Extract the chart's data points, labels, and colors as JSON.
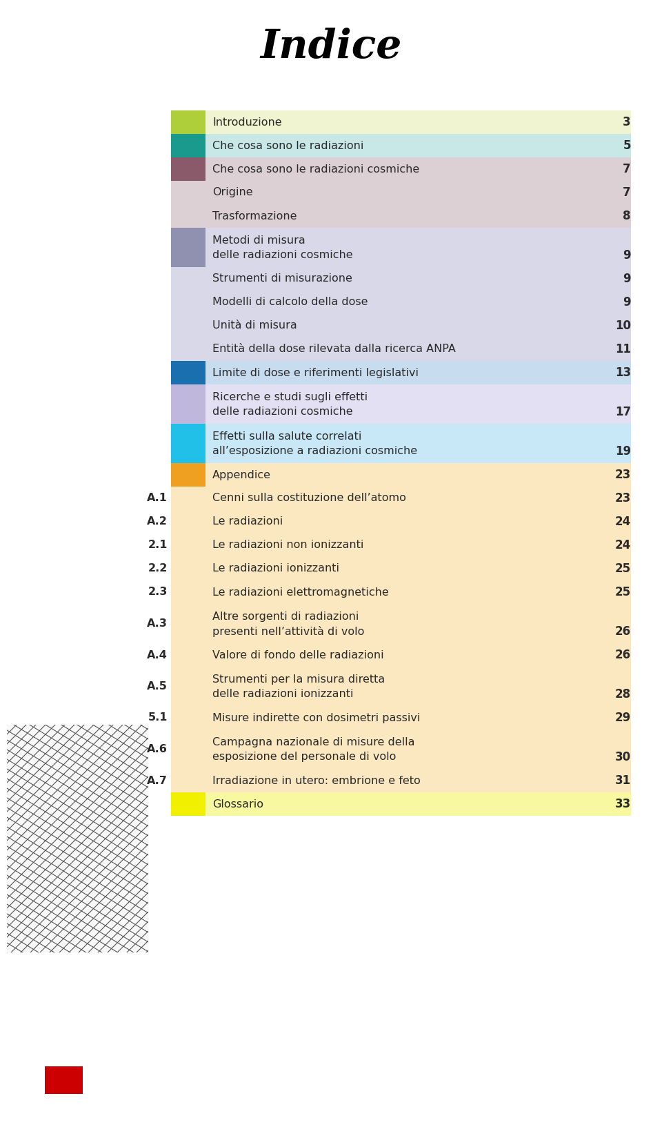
{
  "title": "Indice",
  "bg_color": "#FFFFFF",
  "title_color": "#000000",
  "title_fontsize": 42,
  "entries": [
    {
      "label": "Introduzione",
      "label2": null,
      "page": "3",
      "color_box": "#AECF3A",
      "bg": "#F0F4D0",
      "sub_label": null,
      "two_line": false
    },
    {
      "label": "Che cosa sono le radiazioni",
      "label2": null,
      "page": "5",
      "color_box": "#1A9A8C",
      "bg": "#C8E8E8",
      "sub_label": null,
      "two_line": false
    },
    {
      "label": "Che cosa sono le radiazioni cosmiche",
      "label2": null,
      "page": "7",
      "color_box": "#8B5A6A",
      "bg": "#DDD0D4",
      "sub_label": null,
      "two_line": false
    },
    {
      "label": "Origine",
      "label2": null,
      "page": "7",
      "color_box": null,
      "bg": "#DDD0D4",
      "sub_label": null,
      "two_line": false
    },
    {
      "label": "Trasformazione",
      "label2": null,
      "page": "8",
      "color_box": null,
      "bg": "#DDD0D4",
      "sub_label": null,
      "two_line": false
    },
    {
      "label": "Metodi di misura",
      "label2": "delle radiazioni cosmiche",
      "page": "9",
      "color_box": "#9090B0",
      "bg": "#D8D8E8",
      "sub_label": null,
      "two_line": true
    },
    {
      "label": "Strumenti di misurazione",
      "label2": null,
      "page": "9",
      "color_box": null,
      "bg": "#D8D8E8",
      "sub_label": null,
      "two_line": false
    },
    {
      "label": "Modelli di calcolo della dose",
      "label2": null,
      "page": "9",
      "color_box": null,
      "bg": "#D8D8E8",
      "sub_label": null,
      "two_line": false
    },
    {
      "label": "Unità di misura",
      "label2": null,
      "page": "10",
      "color_box": null,
      "bg": "#D8D8E8",
      "sub_label": null,
      "two_line": false
    },
    {
      "label": "Entità della dose rilevata dalla ricerca ANPA",
      "label2": null,
      "page": "11",
      "color_box": null,
      "bg": "#D8D8E8",
      "sub_label": null,
      "two_line": false
    },
    {
      "label": "Limite di dose e riferimenti legislativi",
      "label2": null,
      "page": "13",
      "color_box": "#1A6FAF",
      "bg": "#C8DCF0",
      "sub_label": null,
      "two_line": false
    },
    {
      "label": "Ricerche e studi sugli effetti",
      "label2": "delle radiazioni cosmiche",
      "page": "17",
      "color_box": "#C0B8DC",
      "bg": "#E4E0F4",
      "sub_label": null,
      "two_line": true
    },
    {
      "label": "Effetti sulla salute correlati",
      "label2": "all’esposizione a radiazioni cosmiche",
      "page": "19",
      "color_box": "#20C0E8",
      "bg": "#C8E8F8",
      "sub_label": null,
      "two_line": true
    },
    {
      "label": "Appendice",
      "label2": null,
      "page": "23",
      "color_box": "#F0A020",
      "bg": "#FCE8C0",
      "sub_label": null,
      "two_line": false
    },
    {
      "label": "Cenni sulla costituzione dell’atomo",
      "label2": null,
      "page": "23",
      "color_box": null,
      "bg": "#FCE8C0",
      "sub_label": "A.1",
      "two_line": false
    },
    {
      "label": "Le radiazioni",
      "label2": null,
      "page": "24",
      "color_box": null,
      "bg": "#FCE8C0",
      "sub_label": "A.2",
      "two_line": false
    },
    {
      "label": "Le radiazioni non ionizzanti",
      "label2": null,
      "page": "24",
      "color_box": null,
      "bg": "#FCE8C0",
      "sub_label": "2.1",
      "two_line": false
    },
    {
      "label": "Le radiazioni ionizzanti",
      "label2": null,
      "page": "25",
      "color_box": null,
      "bg": "#FCE8C0",
      "sub_label": "2.2",
      "two_line": false
    },
    {
      "label": "Le radiazioni elettromagnetiche",
      "label2": null,
      "page": "25",
      "color_box": null,
      "bg": "#FCE8C0",
      "sub_label": "2.3",
      "two_line": false
    },
    {
      "label": "Altre sorgenti di radiazioni",
      "label2": "presenti nell’attività di volo",
      "page": "26",
      "color_box": null,
      "bg": "#FCE8C0",
      "sub_label": "A.3",
      "two_line": true
    },
    {
      "label": "Valore di fondo delle radiazioni",
      "label2": null,
      "page": "26",
      "color_box": null,
      "bg": "#FCE8C0",
      "sub_label": "A.4",
      "two_line": false
    },
    {
      "label": "Strumenti per la misura diretta",
      "label2": "delle radiazioni ionizzanti",
      "page": "28",
      "color_box": null,
      "bg": "#FCE8C0",
      "sub_label": "A.5",
      "two_line": true
    },
    {
      "label": "Misure indirette con dosimetri passivi",
      "label2": null,
      "page": "29",
      "color_box": null,
      "bg": "#FCE8C0",
      "sub_label": "5.1",
      "two_line": false
    },
    {
      "label": "Campagna nazionale di misure della",
      "label2": "esposizione del personale di volo",
      "page": "30",
      "color_box": null,
      "bg": "#FCE8C0",
      "sub_label": "A.6",
      "two_line": true
    },
    {
      "label": "Irradiazione in utero: embrione e feto",
      "label2": null,
      "page": "31",
      "color_box": null,
      "bg": "#FCE8C0",
      "sub_label": "A.7",
      "two_line": false
    },
    {
      "label": "Glossario",
      "label2": null,
      "page": "33",
      "color_box": "#F0F000",
      "bg": "#F8F8A0",
      "sub_label": null,
      "two_line": false
    }
  ]
}
